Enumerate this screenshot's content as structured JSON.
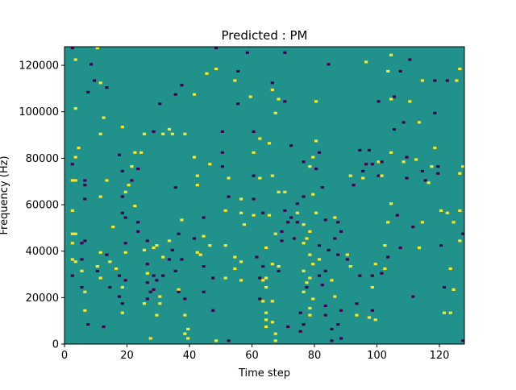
{
  "chart_data": {
    "type": "heatmap",
    "title": "Predicted : PM",
    "xlabel": "Time step",
    "ylabel": "Frequency (Hz)",
    "xlim": [
      0,
      128
    ],
    "ylim": [
      0,
      128000
    ],
    "x_ticks": [
      0,
      20,
      40,
      60,
      80,
      100,
      120
    ],
    "y_ticks": [
      0,
      20000,
      40000,
      60000,
      80000,
      100000,
      120000
    ],
    "x_tick_labels": [
      "0",
      "20",
      "40",
      "60",
      "80",
      "100",
      "120"
    ],
    "y_tick_labels": [
      "0",
      "20000",
      "40000",
      "60000",
      "80000",
      "100000",
      "120000"
    ],
    "grid": false,
    "colormap": "viridis",
    "background_value": 0,
    "colors": {
      "high": "#fde725",
      "mid": "#21918c",
      "low": "#440154"
    },
    "value_range": [
      -1,
      1
    ],
    "cell_size": {
      "time_step": 1,
      "frequency_hz": 1000
    },
    "cells": [
      [
        2,
        127000,
        -1
      ],
      [
        3,
        122000,
        1
      ],
      [
        3,
        101000,
        1
      ],
      [
        4,
        84000,
        1
      ],
      [
        3,
        80000,
        1
      ],
      [
        2,
        77000,
        -1
      ],
      [
        2,
        70000,
        1
      ],
      [
        3,
        70000,
        1
      ],
      [
        2,
        57000,
        1
      ],
      [
        2,
        47000,
        1
      ],
      [
        3,
        47000,
        1
      ],
      [
        2,
        43000,
        1
      ],
      [
        2,
        36000,
        1
      ],
      [
        3,
        35000,
        1
      ],
      [
        2,
        29000,
        -1
      ],
      [
        5,
        36000,
        -1
      ],
      [
        5,
        31000,
        1
      ],
      [
        5,
        24000,
        -1
      ],
      [
        6,
        22000,
        1
      ],
      [
        6,
        14000,
        1
      ],
      [
        6,
        70000,
        -1
      ],
      [
        6,
        68000,
        -1
      ],
      [
        6,
        44000,
        -1
      ],
      [
        5,
        43000,
        -1
      ],
      [
        6,
        62000,
        -1
      ],
      [
        7,
        108000,
        -1
      ],
      [
        7,
        8000,
        -1
      ],
      [
        9,
        113000,
        -1
      ],
      [
        8,
        120000,
        -1
      ],
      [
        10,
        127000,
        1
      ],
      [
        10,
        31000,
        -1
      ],
      [
        10,
        33000,
        1
      ],
      [
        11,
        112000,
        1
      ],
      [
        11,
        90000,
        1
      ],
      [
        11,
        63000,
        1
      ],
      [
        11,
        39000,
        1
      ],
      [
        11,
        28000,
        1
      ],
      [
        12,
        97000,
        1
      ],
      [
        13,
        110000,
        -1
      ],
      [
        12,
        7000,
        -1
      ],
      [
        13,
        70000,
        1
      ],
      [
        13,
        38000,
        -1
      ],
      [
        14,
        35000,
        1
      ],
      [
        14,
        24000,
        -1
      ],
      [
        15,
        50000,
        1
      ],
      [
        17,
        81000,
        -1
      ],
      [
        16,
        32000,
        1
      ],
      [
        17,
        29000,
        -1
      ],
      [
        17,
        20000,
        -1
      ],
      [
        18,
        74000,
        -1
      ],
      [
        18,
        63000,
        -1
      ],
      [
        18,
        56000,
        -1
      ],
      [
        19,
        54000,
        -1
      ],
      [
        19,
        43000,
        -1
      ],
      [
        19,
        39000,
        1
      ],
      [
        19,
        27000,
        -1
      ],
      [
        18,
        24000,
        1
      ],
      [
        18,
        17000,
        -1
      ],
      [
        18,
        13000,
        1
      ],
      [
        18,
        93000,
        1
      ],
      [
        19,
        65000,
        1
      ],
      [
        20,
        68000,
        1
      ],
      [
        21,
        70000,
        -1
      ],
      [
        21,
        76000,
        1
      ],
      [
        22,
        82000,
        1
      ],
      [
        22,
        59000,
        1
      ],
      [
        23,
        52000,
        -1
      ],
      [
        23,
        48000,
        -1
      ],
      [
        23,
        75000,
        -1
      ],
      [
        24,
        82000,
        1
      ],
      [
        25,
        90000,
        1
      ],
      [
        25,
        40000,
        1
      ],
      [
        26,
        44000,
        -1
      ],
      [
        26,
        34000,
        -1
      ],
      [
        26,
        30000,
        1
      ],
      [
        26,
        26000,
        -1
      ],
      [
        26,
        19000,
        -1
      ],
      [
        25,
        17000,
        1
      ],
      [
        27,
        22000,
        -1
      ],
      [
        27,
        2000,
        1
      ],
      [
        28,
        91000,
        -1
      ],
      [
        28,
        41000,
        1
      ],
      [
        28,
        29000,
        -1
      ],
      [
        28,
        23000,
        -1
      ],
      [
        29,
        27000,
        -1
      ],
      [
        29,
        42000,
        1
      ],
      [
        29,
        12000,
        1
      ],
      [
        30,
        103000,
        -1
      ],
      [
        30,
        20000,
        1
      ],
      [
        30,
        17000,
        1
      ],
      [
        31,
        37000,
        1
      ],
      [
        31,
        29000,
        -1
      ],
      [
        31,
        90000,
        1
      ],
      [
        33,
        44000,
        1
      ],
      [
        33,
        36000,
        -1
      ],
      [
        33,
        92000,
        1
      ],
      [
        34,
        90000,
        1
      ],
      [
        34,
        40000,
        -1
      ],
      [
        35,
        107000,
        -1
      ],
      [
        35,
        67000,
        -1
      ],
      [
        35,
        31000,
        -1
      ],
      [
        36,
        47000,
        -1
      ],
      [
        36,
        23000,
        1
      ],
      [
        36,
        22000,
        -1
      ],
      [
        37,
        111000,
        -1
      ],
      [
        37,
        53000,
        1
      ],
      [
        37,
        36000,
        -1
      ],
      [
        38,
        90000,
        1
      ],
      [
        38,
        19000,
        -1
      ],
      [
        38,
        12000,
        1
      ],
      [
        38,
        4000,
        1
      ],
      [
        39,
        6000,
        1
      ],
      [
        39,
        2000,
        1
      ],
      [
        41,
        107000,
        1
      ],
      [
        41,
        80000,
        1
      ],
      [
        42,
        72000,
        1
      ],
      [
        42,
        68000,
        1
      ],
      [
        42,
        39000,
        1
      ],
      [
        41,
        45000,
        -1
      ],
      [
        43,
        38000,
        1
      ],
      [
        44,
        54000,
        -1
      ],
      [
        44,
        46000,
        1
      ],
      [
        44,
        33000,
        -1
      ],
      [
        44,
        22000,
        -1
      ],
      [
        45,
        116000,
        1
      ],
      [
        46,
        77000,
        1
      ],
      [
        46,
        42000,
        1
      ],
      [
        47,
        28000,
        -1
      ],
      [
        47,
        14000,
        -1
      ],
      [
        48,
        127000,
        -1
      ],
      [
        48,
        118000,
        1
      ],
      [
        48,
        1000,
        1
      ],
      [
        50,
        91000,
        -1
      ],
      [
        50,
        82000,
        -1
      ],
      [
        50,
        76000,
        -1
      ],
      [
        51,
        42000,
        1
      ],
      [
        51,
        57000,
        1
      ],
      [
        51,
        28000,
        1
      ],
      [
        52,
        71000,
        1
      ],
      [
        52,
        63000,
        -1
      ],
      [
        52,
        1000,
        -1
      ],
      [
        54,
        113000,
        1
      ],
      [
        54,
        37000,
        1
      ],
      [
        54,
        32000,
        1
      ],
      [
        55,
        117000,
        -1
      ],
      [
        55,
        103000,
        -1
      ],
      [
        56,
        62000,
        1
      ],
      [
        56,
        56000,
        1
      ],
      [
        56,
        35000,
        1
      ],
      [
        56,
        27000,
        1
      ],
      [
        57,
        51000,
        1
      ],
      [
        58,
        125000,
        -1
      ],
      [
        59,
        106000,
        1
      ],
      [
        60,
        91000,
        -1
      ],
      [
        60,
        82000,
        1
      ],
      [
        60,
        72000,
        -1
      ],
      [
        60,
        62000,
        -1
      ],
      [
        60,
        55000,
        1
      ],
      [
        61,
        37000,
        -1
      ],
      [
        62,
        88000,
        1
      ],
      [
        62,
        71000,
        1
      ],
      [
        62,
        28000,
        -1
      ],
      [
        62,
        19000,
        -1
      ],
      [
        63,
        56000,
        -1
      ],
      [
        63,
        33000,
        -1
      ],
      [
        63,
        27000,
        1
      ],
      [
        63,
        18000,
        1
      ],
      [
        64,
        41000,
        1
      ],
      [
        64,
        28000,
        1
      ],
      [
        64,
        13000,
        1
      ],
      [
        64,
        10000,
        1
      ],
      [
        64,
        7000,
        1
      ],
      [
        64,
        24000,
        1
      ],
      [
        65,
        86000,
        1
      ],
      [
        66,
        109000,
        1
      ],
      [
        66,
        112000,
        -1
      ],
      [
        65,
        55000,
        1
      ],
      [
        66,
        72000,
        1
      ],
      [
        66,
        34000,
        1
      ],
      [
        66,
        18000,
        1
      ],
      [
        66,
        9000,
        1
      ],
      [
        67,
        47000,
        1
      ],
      [
        67,
        99000,
        1
      ],
      [
        67,
        4000,
        1
      ],
      [
        67,
        1000,
        1
      ],
      [
        68,
        105000,
        1
      ],
      [
        68,
        65000,
        1
      ],
      [
        68,
        33000,
        1
      ],
      [
        68,
        31000,
        -1
      ],
      [
        69,
        48000,
        -1
      ],
      [
        69,
        44000,
        -1
      ],
      [
        70,
        125000,
        -1
      ],
      [
        70,
        104000,
        -1
      ],
      [
        70,
        65000,
        1
      ],
      [
        70,
        57000,
        -1
      ],
      [
        71,
        52000,
        -1
      ],
      [
        71,
        7000,
        -1
      ],
      [
        72,
        85000,
        -1
      ],
      [
        72,
        54000,
        -1
      ],
      [
        73,
        45000,
        -1
      ],
      [
        74,
        60000,
        -1
      ],
      [
        74,
        56000,
        1
      ],
      [
        74,
        52000,
        -1
      ],
      [
        75,
        13000,
        -1
      ],
      [
        75,
        5000,
        -1
      ],
      [
        76,
        78000,
        -1
      ],
      [
        76,
        63000,
        -1
      ],
      [
        76,
        51000,
        1
      ],
      [
        76,
        43000,
        1
      ],
      [
        76,
        31000,
        1
      ],
      [
        76,
        22000,
        1
      ],
      [
        76,
        8000,
        -1
      ],
      [
        77,
        45000,
        1
      ],
      [
        77,
        26000,
        1
      ],
      [
        77,
        24000,
        -1
      ],
      [
        78,
        48000,
        1
      ],
      [
        78,
        38000,
        1
      ],
      [
        78,
        28000,
        1
      ],
      [
        78,
        15000,
        1
      ],
      [
        78,
        12000,
        1
      ],
      [
        78,
        76000,
        1
      ],
      [
        79,
        80000,
        1
      ],
      [
        79,
        64000,
        1
      ],
      [
        79,
        34000,
        1
      ],
      [
        79,
        19000,
        1
      ],
      [
        80,
        104000,
        1
      ],
      [
        80,
        87000,
        1
      ],
      [
        80,
        75000,
        -1
      ],
      [
        80,
        56000,
        1
      ],
      [
        81,
        82000,
        -1
      ],
      [
        81,
        42000,
        -1
      ],
      [
        81,
        36000,
        1
      ],
      [
        81,
        29000,
        -1
      ],
      [
        82,
        67000,
        -1
      ],
      [
        82,
        25000,
        -1
      ],
      [
        83,
        53000,
        -1
      ],
      [
        83,
        31000,
        -1
      ],
      [
        83,
        16000,
        -1
      ],
      [
        83,
        12000,
        -1
      ],
      [
        84,
        40000,
        -1
      ],
      [
        84,
        120000,
        -1
      ],
      [
        85,
        6000,
        -1
      ],
      [
        85,
        1000,
        -1
      ],
      [
        85,
        27000,
        1
      ],
      [
        86,
        45000,
        -1
      ],
      [
        86,
        54000,
        1
      ],
      [
        86,
        20000,
        1
      ],
      [
        87,
        52000,
        -1
      ],
      [
        87,
        38000,
        -1
      ],
      [
        87,
        8000,
        -1
      ],
      [
        88,
        48000,
        -1
      ],
      [
        88,
        14000,
        -1
      ],
      [
        88,
        2000,
        -1
      ],
      [
        90,
        38000,
        1
      ],
      [
        90,
        36000,
        -1
      ],
      [
        91,
        72000,
        1
      ],
      [
        91,
        33000,
        1
      ],
      [
        92,
        68000,
        -1
      ],
      [
        93,
        17000,
        -1
      ],
      [
        93,
        12000,
        1
      ],
      [
        94,
        83000,
        -1
      ],
      [
        94,
        29000,
        -1
      ],
      [
        95,
        74000,
        -1
      ],
      [
        95,
        71000,
        1
      ],
      [
        96,
        77000,
        -1
      ],
      [
        96,
        121000,
        1
      ],
      [
        97,
        11000,
        1
      ],
      [
        97,
        83000,
        -1
      ],
      [
        98,
        77000,
        -1
      ],
      [
        98,
        29000,
        -1
      ],
      [
        98,
        24000,
        1
      ],
      [
        98,
        14000,
        -1
      ],
      [
        99,
        34000,
        1
      ],
      [
        99,
        10000,
        1
      ],
      [
        100,
        72000,
        -1
      ],
      [
        100,
        78000,
        1
      ],
      [
        100,
        104000,
        -1
      ],
      [
        101,
        30000,
        -1
      ],
      [
        101,
        78000,
        -1
      ],
      [
        101,
        72000,
        1
      ],
      [
        102,
        32000,
        1
      ],
      [
        102,
        42000,
        1
      ],
      [
        103,
        37000,
        -1
      ],
      [
        103,
        117000,
        1
      ],
      [
        103,
        52000,
        1
      ],
      [
        104,
        82000,
        1
      ],
      [
        104,
        105000,
        1
      ],
      [
        104,
        124000,
        1
      ],
      [
        104,
        60000,
        1
      ],
      [
        105,
        92000,
        -1
      ],
      [
        105,
        106000,
        -1
      ],
      [
        106,
        55000,
        -1
      ],
      [
        107,
        41000,
        -1
      ],
      [
        107,
        117000,
        -1
      ],
      [
        108,
        78000,
        1
      ],
      [
        108,
        95000,
        -1
      ],
      [
        109,
        80000,
        -1
      ],
      [
        109,
        71000,
        -1
      ],
      [
        110,
        122000,
        -1
      ],
      [
        110,
        104000,
        1
      ],
      [
        111,
        50000,
        -1
      ],
      [
        111,
        20000,
        -1
      ],
      [
        112,
        79000,
        1
      ],
      [
        113,
        95000,
        1
      ],
      [
        113,
        41000,
        1
      ],
      [
        114,
        113000,
        1
      ],
      [
        114,
        74000,
        -1
      ],
      [
        114,
        52000,
        1
      ],
      [
        115,
        70000,
        -1
      ],
      [
        116,
        69000,
        1
      ],
      [
        117,
        76000,
        1
      ],
      [
        118,
        84000,
        1
      ],
      [
        118,
        99000,
        -1
      ],
      [
        118,
        113000,
        -1
      ],
      [
        119,
        76000,
        -1
      ],
      [
        119,
        73000,
        -1
      ],
      [
        120,
        57000,
        1
      ],
      [
        120,
        42000,
        -1
      ],
      [
        121,
        24000,
        -1
      ],
      [
        121,
        13000,
        1
      ],
      [
        122,
        113000,
        -1
      ],
      [
        122,
        56000,
        1
      ],
      [
        123,
        32000,
        1
      ],
      [
        123,
        13000,
        1
      ],
      [
        124,
        23000,
        1
      ],
      [
        124,
        52000,
        1
      ],
      [
        125,
        113000,
        1
      ],
      [
        126,
        118000,
        1
      ],
      [
        126,
        57000,
        1
      ],
      [
        126,
        44000,
        1
      ],
      [
        127,
        47000,
        -1
      ],
      [
        127,
        1000,
        -1
      ],
      [
        126,
        73000,
        1
      ],
      [
        127,
        76000,
        1
      ]
    ]
  }
}
